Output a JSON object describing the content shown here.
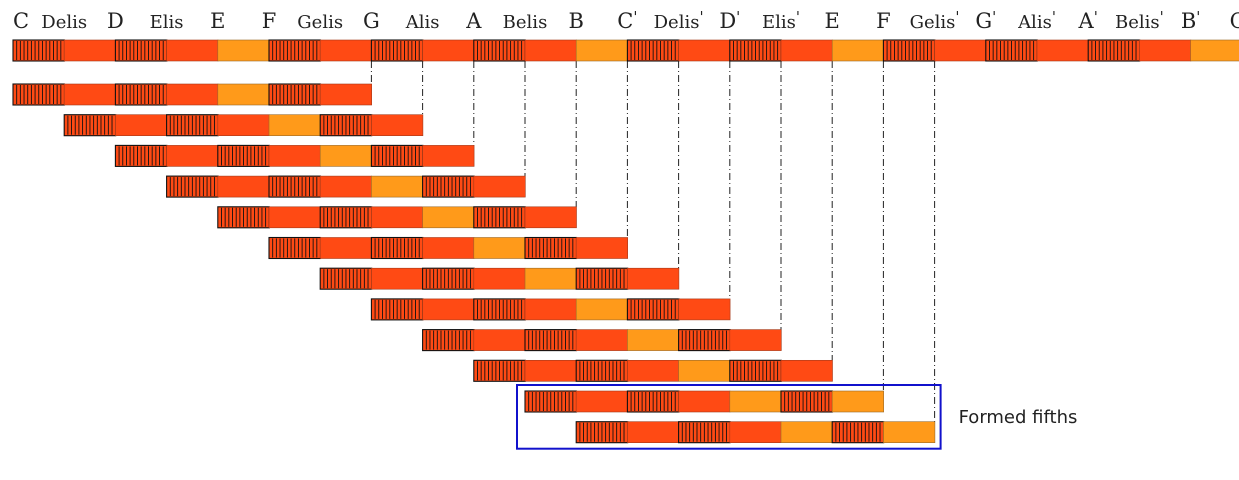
{
  "diagram": {
    "note_labels": [
      {
        "base": "C",
        "mark": ""
      },
      {
        "base": "Delis",
        "mark": ""
      },
      {
        "base": "D",
        "mark": ""
      },
      {
        "base": "Elis",
        "mark": ""
      },
      {
        "base": "E",
        "mark": ""
      },
      {
        "base": "F",
        "mark": ""
      },
      {
        "base": "Gelis",
        "mark": ""
      },
      {
        "base": "G",
        "mark": ""
      },
      {
        "base": "Alis",
        "mark": ""
      },
      {
        "base": "A",
        "mark": ""
      },
      {
        "base": "Belis",
        "mark": ""
      },
      {
        "base": "B",
        "mark": ""
      },
      {
        "base": "C",
        "mark": "'"
      },
      {
        "base": "Delis",
        "mark": "'"
      },
      {
        "base": "D",
        "mark": "'"
      },
      {
        "base": "Elis",
        "mark": "'"
      },
      {
        "base": "E",
        "mark": ""
      },
      {
        "base": "F",
        "mark": ""
      },
      {
        "base": "Gelis",
        "mark": "'"
      },
      {
        "base": "G",
        "mark": "'"
      },
      {
        "base": "Alis",
        "mark": "'"
      },
      {
        "base": "A",
        "mark": "'"
      },
      {
        "base": "Belis",
        "mark": "'"
      },
      {
        "base": "B",
        "mark": "'"
      },
      {
        "base": "C",
        "mark": "''"
      }
    ],
    "top_bar_pattern": [
      "H",
      "R",
      "H",
      "R",
      "O",
      "H",
      "R",
      "H",
      "R",
      "H",
      "R",
      "O",
      "H",
      "R",
      "H",
      "R",
      "O",
      "H",
      "R",
      "H",
      "R",
      "H",
      "R",
      "O"
    ],
    "fifth_rows": [
      {
        "start_step": 0,
        "pattern": [
          "H",
          "R",
          "H",
          "R",
          "O",
          "H",
          "R"
        ]
      },
      {
        "start_step": 1,
        "pattern": [
          "H",
          "R",
          "H",
          "R",
          "O",
          "H",
          "R"
        ]
      },
      {
        "start_step": 2,
        "pattern": [
          "H",
          "R",
          "H",
          "R",
          "O",
          "H",
          "R"
        ]
      },
      {
        "start_step": 3,
        "pattern": [
          "H",
          "R",
          "H",
          "R",
          "O",
          "H",
          "R"
        ]
      },
      {
        "start_step": 4,
        "pattern": [
          "H",
          "R",
          "H",
          "R",
          "O",
          "H",
          "R"
        ]
      },
      {
        "start_step": 5,
        "pattern": [
          "H",
          "R",
          "H",
          "R",
          "O",
          "H",
          "R"
        ]
      },
      {
        "start_step": 6,
        "pattern": [
          "H",
          "R",
          "H",
          "R",
          "O",
          "H",
          "R"
        ]
      },
      {
        "start_step": 7,
        "pattern": [
          "H",
          "R",
          "H",
          "R",
          "O",
          "H",
          "R"
        ]
      },
      {
        "start_step": 8,
        "pattern": [
          "H",
          "R",
          "H",
          "R",
          "O",
          "H",
          "R"
        ]
      },
      {
        "start_step": 9,
        "pattern": [
          "H",
          "R",
          "H",
          "R",
          "O",
          "H",
          "R"
        ]
      },
      {
        "start_step": 10,
        "pattern": [
          "H",
          "R",
          "H",
          "R",
          "O",
          "H",
          "O"
        ]
      },
      {
        "start_step": 11,
        "pattern": [
          "H",
          "R",
          "H",
          "R",
          "O",
          "H",
          "O"
        ]
      }
    ],
    "dashed_guides_from_step": 7,
    "highlight": {
      "rows": [
        10,
        11
      ],
      "label": "Formed fifths",
      "color": "#1111cc"
    },
    "colors": {
      "red": "#ff4a14",
      "orange": "#ff9a1a",
      "hatch": "#111111",
      "guide": "#222222"
    }
  }
}
